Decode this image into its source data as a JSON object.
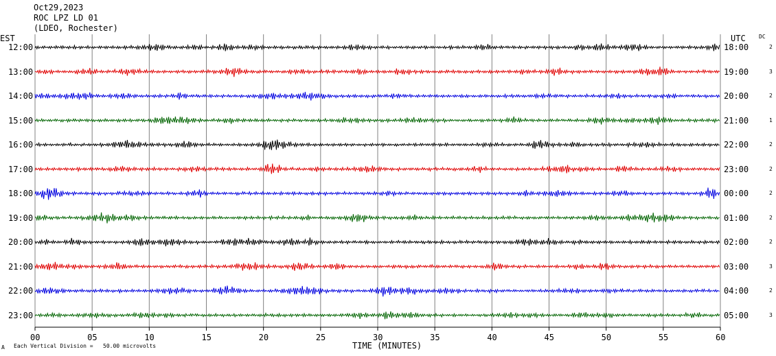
{
  "header": {
    "date": "Oct29,2023",
    "station": "ROC LPZ LD 01",
    "network": "(LDEO, Rochester)"
  },
  "left_axis_title": "EST",
  "right_axis_title": "UTC",
  "dc_title": "DC",
  "xlabel": "TIME (MINUTES)",
  "footer": {
    "mark": "A",
    "scale_note": "Each Vertical Division =   50.00 microvolts"
  },
  "colors": {
    "cycle": [
      "#000000",
      "#e00000",
      "#0000e0",
      "#006400"
    ],
    "grid": "#808080"
  },
  "chart_data": {
    "type": "line",
    "xlim": [
      0,
      60
    ],
    "x_ticks": [
      "00",
      "05",
      "10",
      "15",
      "20",
      "25",
      "30",
      "35",
      "40",
      "45",
      "50",
      "55",
      "60"
    ],
    "rows": [
      {
        "est": "12:00",
        "utc": "18:00",
        "dc": "2"
      },
      {
        "est": "13:00",
        "utc": "19:00",
        "dc": "3"
      },
      {
        "est": "14:00",
        "utc": "20:00",
        "dc": "2"
      },
      {
        "est": "15:00",
        "utc": "21:00",
        "dc": "1"
      },
      {
        "est": "16:00",
        "utc": "22:00",
        "dc": "2"
      },
      {
        "est": "17:00",
        "utc": "23:00",
        "dc": "2"
      },
      {
        "est": "18:00",
        "utc": "00:00",
        "dc": "2"
      },
      {
        "est": "19:00",
        "utc": "01:00",
        "dc": "2"
      },
      {
        "est": "20:00",
        "utc": "02:00",
        "dc": "2"
      },
      {
        "est": "21:00",
        "utc": "03:00",
        "dc": "3"
      },
      {
        "est": "22:00",
        "utc": "04:00",
        "dc": "2"
      },
      {
        "est": "23:00",
        "utc": "05:00",
        "dc": "3"
      }
    ]
  }
}
